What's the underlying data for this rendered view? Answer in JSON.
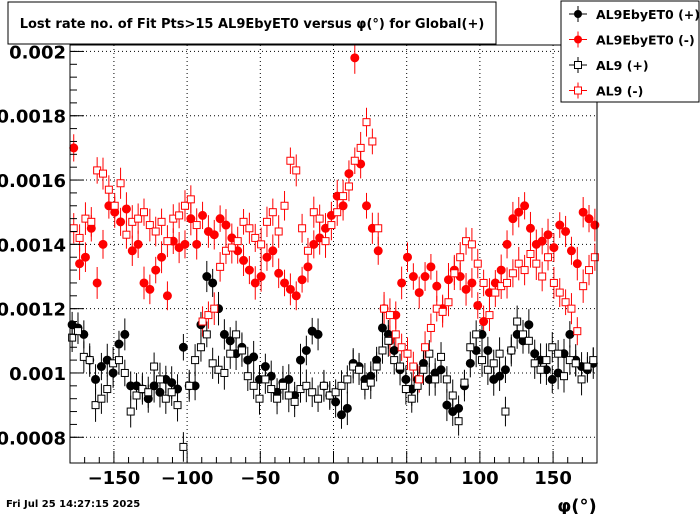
{
  "chart_data": {
    "type": "scatter",
    "title": "Lost rate no. of Fit Pts>15 AL9EbyET0 versus φ(°) for Global(+)",
    "xlabel": "φ(°)",
    "ylabel": "",
    "xlim": [
      -180,
      180
    ],
    "ylim": [
      0.00072,
      0.00202
    ],
    "x_ticks": [
      -150,
      -100,
      -50,
      0,
      50,
      100,
      150
    ],
    "x_tick_labels": [
      "−150",
      "−100",
      "−50",
      "0",
      "50",
      "100",
      "150"
    ],
    "y_ticks": [
      0.0008,
      0.001,
      0.0012,
      0.0014,
      0.0016,
      0.0018,
      0.002
    ],
    "y_tick_labels": [
      "0.0008",
      "0.001",
      "0.0012",
      "0.0014",
      "0.0016",
      "0.0018",
      "0.002"
    ],
    "grid": true,
    "legend_position": "top-right",
    "timestamp": "Fri Jul 25 14:27:15 2025",
    "x": [
      -178,
      -174,
      -170,
      -166,
      -162,
      -158,
      -154,
      -150,
      -146,
      -142,
      -138,
      -134,
      -130,
      -126,
      -122,
      -118,
      -114,
      -110,
      -106,
      -102,
      -98,
      -94,
      -90,
      -86,
      -82,
      -78,
      -74,
      -70,
      -66,
      -62,
      -58,
      -54,
      -50,
      -46,
      -42,
      -38,
      -34,
      -30,
      -26,
      -22,
      -18,
      -14,
      -10,
      -6,
      -2,
      2,
      6,
      10,
      14,
      18,
      22,
      26,
      30,
      34,
      38,
      42,
      46,
      50,
      54,
      58,
      62,
      66,
      70,
      74,
      78,
      82,
      86,
      90,
      94,
      98,
      102,
      106,
      110,
      114,
      118,
      122,
      126,
      130,
      134,
      138,
      142,
      146,
      150,
      154,
      158,
      162,
      166,
      170,
      174,
      178
    ],
    "series": [
      {
        "name": "AL9EbyET0 (+)",
        "marker": "filled-circle",
        "color": "#000000",
        "values": [
          0.00115,
          0.00114,
          0.00112,
          0.00104,
          0.00098,
          0.00102,
          0.00104,
          0.001,
          0.00109,
          0.00112,
          0.00096,
          0.00096,
          0.00095,
          0.00092,
          0.00096,
          0.00094,
          0.00098,
          0.00097,
          0.00095,
          0.00108,
          0.00096,
          0.00096,
          0.00115,
          0.0013,
          0.00128,
          0.0012,
          0.00112,
          0.0011,
          0.00106,
          0.00108,
          0.00104,
          0.00105,
          0.00098,
          0.00102,
          0.00099,
          0.00094,
          0.00097,
          0.00098,
          0.00093,
          0.00104,
          0.00107,
          0.00113,
          0.00112,
          0.00096,
          0.00093,
          0.00091,
          0.00087,
          0.00089,
          0.00103,
          0.00102,
          0.00098,
          0.00099,
          0.00104,
          0.00114,
          0.00112,
          0.00107,
          0.00101,
          0.00098,
          0.00095,
          0.00098,
          0.00103,
          0.00098,
          0.001,
          0.00101,
          0.0009,
          0.00088,
          0.00089,
          0.00096,
          0.00103,
          0.00107,
          0.00112,
          0.00107,
          0.00098,
          0.00099,
          0.00101,
          0.00107,
          0.00112,
          0.0011,
          0.00115,
          0.00106,
          0.00104,
          0.00101,
          0.00098,
          0.001,
          0.00106,
          0.00112,
          0.00104,
          0.00102,
          0.00101,
          0.00103
        ]
      },
      {
        "name": "AL9EbyET0 (-)",
        "marker": "filled-circle",
        "color": "#ff0000",
        "values": [
          0.0017,
          0.00134,
          0.00136,
          0.00145,
          0.00128,
          0.0014,
          0.00152,
          0.0015,
          0.00147,
          0.00151,
          0.00138,
          0.0014,
          0.00128,
          0.00126,
          0.00132,
          0.00136,
          0.00124,
          0.00141,
          0.00139,
          0.0014,
          0.00148,
          0.0014,
          0.00149,
          0.00144,
          0.00143,
          0.00148,
          0.00146,
          0.00142,
          0.00138,
          0.00135,
          0.00132,
          0.00128,
          0.0013,
          0.00136,
          0.00138,
          0.00131,
          0.00128,
          0.00126,
          0.00124,
          0.00129,
          0.00133,
          0.0014,
          0.00142,
          0.00145,
          0.00149,
          0.00155,
          0.00152,
          0.00162,
          0.00198,
          0.00165,
          0.00152,
          0.00145,
          0.00138,
          0.0012,
          0.0011,
          0.00118,
          0.00128,
          0.00136,
          0.0013,
          0.00125,
          0.0013,
          0.00133,
          0.00127,
          0.0012,
          0.00129,
          0.00132,
          0.0013,
          0.00126,
          0.00128,
          0.00121,
          0.00116,
          0.00125,
          0.00128,
          0.00132,
          0.0014,
          0.00148,
          0.0015,
          0.00152,
          0.00145,
          0.0014,
          0.00141,
          0.00143,
          0.00139,
          0.00146,
          0.00144,
          0.00138,
          0.00134,
          0.0015,
          0.00148,
          0.00146
        ]
      },
      {
        "name": "AL9 (+)",
        "marker": "open-square",
        "color": "#000000",
        "values": [
          0.00111,
          0.00113,
          0.00105,
          0.00104,
          0.0009,
          0.00092,
          0.00095,
          0.00103,
          0.00104,
          0.001,
          0.00088,
          0.00093,
          0.00095,
          0.00094,
          0.00102,
          0.00098,
          0.00092,
          0.00094,
          0.0009,
          0.00077,
          0.00096,
          0.00104,
          0.00108,
          0.00112,
          0.00103,
          0.00101,
          0.001,
          0.00106,
          0.00112,
          0.00107,
          0.00099,
          0.00096,
          0.00092,
          0.00098,
          0.00095,
          0.00092,
          0.00096,
          0.00093,
          0.00091,
          0.00095,
          0.00096,
          0.00094,
          0.00092,
          0.00096,
          0.00093,
          0.00094,
          0.00096,
          0.00098,
          0.00102,
          0.00101,
          0.00096,
          0.00097,
          0.00102,
          0.00107,
          0.0011,
          0.00104,
          0.00102,
          0.00095,
          0.00092,
          0.00096,
          0.00101,
          0.00106,
          0.00098,
          0.00105,
          0.00098,
          0.00093,
          0.00085,
          0.00097,
          0.00108,
          0.00112,
          0.00104,
          0.00101,
          0.00103,
          0.00106,
          0.00088,
          0.00107,
          0.00116,
          0.00112,
          0.0011,
          0.00103,
          0.00101,
          0.00104,
          0.00108,
          0.00106,
          0.00099,
          0.00104,
          0.00103,
          0.00098,
          0.00102,
          0.00104
        ]
      },
      {
        "name": "AL9 (-)",
        "marker": "open-square",
        "color": "#ff0000",
        "values": [
          0.00145,
          0.00142,
          0.00148,
          0.00147,
          0.00163,
          0.00162,
          0.00157,
          0.00152,
          0.00159,
          0.00143,
          0.00147,
          0.00148,
          0.0015,
          0.00146,
          0.00144,
          0.00147,
          0.00141,
          0.00148,
          0.00149,
          0.00152,
          0.00154,
          0.00146,
          0.00116,
          0.00118,
          0.0012,
          0.00133,
          0.00138,
          0.00139,
          0.00141,
          0.00147,
          0.00145,
          0.00142,
          0.0014,
          0.00147,
          0.0015,
          0.00144,
          0.00152,
          0.00166,
          0.00163,
          0.00145,
          0.00138,
          0.0015,
          0.00148,
          0.00141,
          0.00146,
          0.0015,
          0.00155,
          0.00158,
          0.00166,
          0.0017,
          0.00178,
          0.00172,
          0.00145,
          0.0012,
          0.00118,
          0.00112,
          0.00108,
          0.00106,
          0.00102,
          0.00098,
          0.00108,
          0.00114,
          0.0012,
          0.00119,
          0.00122,
          0.00131,
          0.00136,
          0.00141,
          0.0014,
          0.00134,
          0.00128,
          0.00118,
          0.00125,
          0.00127,
          0.00128,
          0.00131,
          0.00134,
          0.00132,
          0.00137,
          0.00134,
          0.0013,
          0.00136,
          0.00128,
          0.00125,
          0.00122,
          0.0012,
          0.00113,
          0.00127,
          0.00132,
          0.00136
        ]
      }
    ]
  }
}
